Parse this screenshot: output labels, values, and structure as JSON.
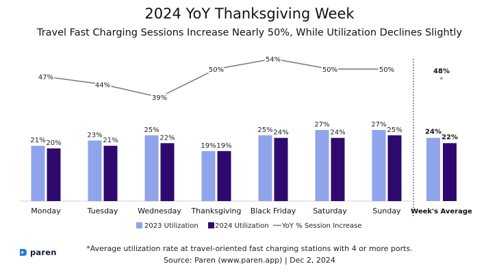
{
  "header": {
    "title": "2024 YoY Thanksgiving Week",
    "subtitle": "Travel Fast Charging Sessions Increase Nearly 50%, While Utilization Declines Slightly"
  },
  "footer": {
    "footnote": "*Average utilization rate at travel-oriented fast charging stations with 4 or more ports.",
    "source": "Source: Paren (www.paren.app) | Dec 2, 2024",
    "logo_text": "paren"
  },
  "colors": {
    "util_2023": "#8fa4ea",
    "util_2024": "#2e0a6e",
    "yoy_line": "#7f7f7f",
    "divider": "#555555"
  },
  "chart_data": {
    "type": "bar",
    "title": "2024 YoY Thanksgiving Week",
    "subtitle": "Travel Fast Charging Sessions Increase Nearly 50%, While Utilization Declines Slightly",
    "categories": [
      "Monday",
      "Tuesday",
      "Wednesday",
      "Thanksgiving",
      "Black Friday",
      "Saturday",
      "Sunday"
    ],
    "series": [
      {
        "name": "2023 Utilization",
        "type": "bar",
        "values": [
          21,
          23,
          25,
          19,
          25,
          27,
          27
        ],
        "labels": [
          "21%",
          "23%",
          "25%",
          "19%",
          "25%",
          "27%",
          "27%"
        ]
      },
      {
        "name": "2024 Utilization",
        "type": "bar",
        "values": [
          20,
          21,
          22,
          19,
          24,
          24,
          25
        ],
        "labels": [
          "20%",
          "21%",
          "22%",
          "19%",
          "24%",
          "24%",
          "25%"
        ]
      },
      {
        "name": "YoY % Session Increase",
        "type": "line",
        "values": [
          47,
          44,
          39,
          50,
          54,
          50,
          50
        ],
        "labels": [
          "47%",
          "44%",
          "39%",
          "50%",
          "54%",
          "50%",
          "50%"
        ]
      }
    ],
    "weeks_average": {
      "label": "Week's Average",
      "util_2023": 24,
      "util_2023_label": "24%",
      "util_2024": 22,
      "util_2024_label": "22%",
      "yoy": 48,
      "yoy_label": "48%",
      "yoy_marker": "*"
    },
    "legend_position": "bottom",
    "grid": false
  }
}
